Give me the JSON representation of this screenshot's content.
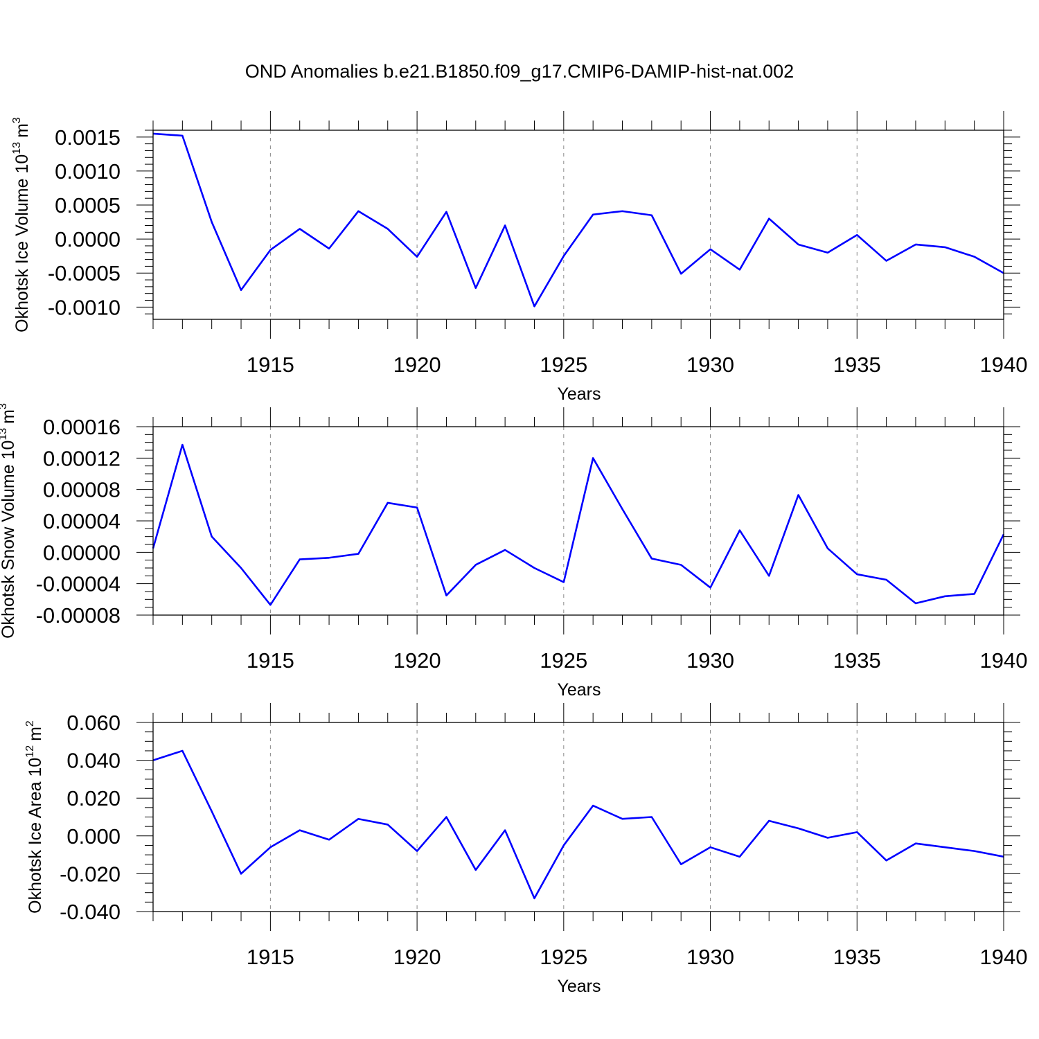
{
  "title": "OND Anomalies b.e21.B1850.f09_g17.CMIP6-DAMIP-hist-nat.002",
  "line_color": "#0000ff",
  "chart_data": [
    {
      "type": "line",
      "ylabel_main": "Okhotsk Ice Volume 10",
      "ylabel_exp": "13",
      "ylabel_unit": "m",
      "ylabel_unit_exp": "3",
      "xlabel": "Years",
      "xlim": [
        1911,
        1940
      ],
      "ylim": [
        -0.00118,
        0.0016
      ],
      "x_ticks": [
        1915,
        1920,
        1925,
        1930,
        1935,
        1940
      ],
      "x_tick_labels": [
        "1915",
        "1920",
        "1925",
        "1930",
        "1935",
        "1940"
      ],
      "y_ticks": [
        -0.001,
        -0.0005,
        0.0,
        0.0005,
        0.001,
        0.0015
      ],
      "y_tick_labels": [
        "-0.0010",
        "-0.0005",
        "0.0000",
        "0.0005",
        "0.0010",
        "0.0015"
      ],
      "grid": "vertical dashed at major x ticks",
      "x": [
        1911,
        1912,
        1913,
        1914,
        1915,
        1916,
        1917,
        1918,
        1919,
        1920,
        1921,
        1922,
        1923,
        1924,
        1925,
        1926,
        1927,
        1928,
        1929,
        1930,
        1931,
        1932,
        1933,
        1934,
        1935,
        1936,
        1937,
        1938,
        1939,
        1940
      ],
      "values": [
        0.00155,
        0.00152,
        0.00025,
        -0.00075,
        -0.00016,
        0.00015,
        -0.00014,
        0.00041,
        0.00015,
        -0.00026,
        0.0004,
        -0.00072,
        0.0002,
        -0.00099,
        -0.00025,
        0.00036,
        0.00041,
        0.00035,
        -0.00051,
        -0.00015,
        -0.00045,
        0.0003,
        -8e-05,
        -0.0002,
        6e-05,
        -0.00032,
        -8e-05,
        -0.00012,
        -0.00026,
        -0.0005
      ]
    },
    {
      "type": "line",
      "ylabel_main": "Okhotsk Snow Volume 10",
      "ylabel_exp": "13",
      "ylabel_unit": "m",
      "ylabel_unit_exp": "3",
      "xlabel": "Years",
      "xlim": [
        1911,
        1940
      ],
      "ylim": [
        -8e-05,
        0.00016
      ],
      "x_ticks": [
        1915,
        1920,
        1925,
        1930,
        1935,
        1940
      ],
      "x_tick_labels": [
        "1915",
        "1920",
        "1925",
        "1930",
        "1935",
        "1940"
      ],
      "y_ticks": [
        -8e-05,
        -4e-05,
        0.0,
        4e-05,
        8e-05,
        0.00012,
        0.00016
      ],
      "y_tick_labels": [
        "-0.00008",
        "-0.00004",
        "0.00000",
        "0.00004",
        "0.00008",
        "0.00012",
        "0.00016"
      ],
      "grid": "vertical dashed at major x ticks",
      "x": [
        1911,
        1912,
        1913,
        1914,
        1915,
        1916,
        1917,
        1918,
        1919,
        1920,
        1921,
        1922,
        1923,
        1924,
        1925,
        1926,
        1927,
        1928,
        1929,
        1930,
        1931,
        1932,
        1933,
        1934,
        1935,
        1936,
        1937,
        1938,
        1939,
        1940
      ],
      "values": [
        5e-06,
        0.000137,
        2e-05,
        -2e-05,
        -6.7e-05,
        -9e-06,
        -7e-06,
        -2e-06,
        6.3e-05,
        5.7e-05,
        -5.5e-05,
        -1.6e-05,
        3e-06,
        -2e-05,
        -3.8e-05,
        0.00012,
        5.5e-05,
        -8e-06,
        -1.6e-05,
        -4.5e-05,
        2.8e-05,
        -3e-05,
        7.3e-05,
        5e-06,
        -2.8e-05,
        -3.5e-05,
        -6.5e-05,
        -5.6e-05,
        -5.3e-05,
        2.3e-05
      ]
    },
    {
      "type": "line",
      "ylabel_main": "Okhotsk Ice Area 10",
      "ylabel_exp": "12",
      "ylabel_unit": "m",
      "ylabel_unit_exp": "2",
      "xlabel": "Years",
      "xlim": [
        1911,
        1940
      ],
      "ylim": [
        -0.04,
        0.06
      ],
      "x_ticks": [
        1915,
        1920,
        1925,
        1930,
        1935,
        1940
      ],
      "x_tick_labels": [
        "1915",
        "1920",
        "1925",
        "1930",
        "1935",
        "1940"
      ],
      "y_ticks": [
        -0.04,
        -0.02,
        0.0,
        0.02,
        0.04,
        0.06
      ],
      "y_tick_labels": [
        "-0.040",
        "-0.020",
        "0.000",
        "0.020",
        "0.040",
        "0.060"
      ],
      "grid": "vertical dashed at major x ticks",
      "x": [
        1911,
        1912,
        1913,
        1914,
        1915,
        1916,
        1917,
        1918,
        1919,
        1920,
        1921,
        1922,
        1923,
        1924,
        1925,
        1926,
        1927,
        1928,
        1929,
        1930,
        1931,
        1932,
        1933,
        1934,
        1935,
        1936,
        1937,
        1938,
        1939,
        1940
      ],
      "values": [
        0.04,
        0.045,
        0.013,
        -0.02,
        -0.006,
        0.003,
        -0.002,
        0.009,
        0.006,
        -0.008,
        0.01,
        -0.018,
        0.003,
        -0.033,
        -0.005,
        0.016,
        0.009,
        0.01,
        -0.015,
        -0.006,
        -0.011,
        0.008,
        0.004,
        -0.001,
        0.002,
        -0.013,
        -0.004,
        -0.006,
        -0.008,
        -0.011
      ]
    }
  ]
}
